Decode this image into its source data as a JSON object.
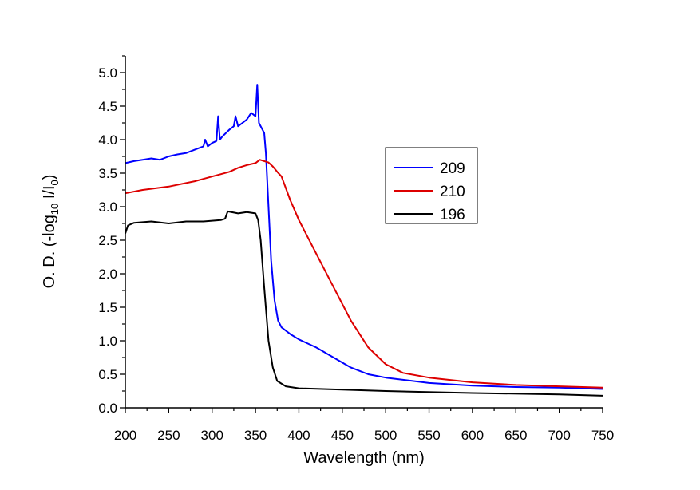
{
  "chart_data": {
    "type": "line",
    "title": "",
    "xlabel": "Wavelength (nm)",
    "ylabel": {
      "main": "O. D. (-log",
      "sub1": "10",
      "mid": " I/I",
      "sub2": "0",
      "end": ")"
    },
    "xlim": [
      200,
      750
    ],
    "ylim": [
      0,
      5
    ],
    "xticks": [
      200,
      250,
      300,
      350,
      400,
      450,
      500,
      550,
      600,
      650,
      700,
      750
    ],
    "xtick_labels": [
      "200",
      "250",
      "300",
      "350",
      "400",
      "450",
      "500",
      "550",
      "600",
      "650",
      "700",
      "750"
    ],
    "yticks": [
      0,
      0.5,
      1,
      1.5,
      2,
      2.5,
      3,
      3.5,
      4,
      4.5,
      5
    ],
    "ytick_labels": [
      "0.0",
      "0.5",
      "1.0",
      "1.5",
      "2.0",
      "2.5",
      "3.0",
      "3.5",
      "4.0",
      "4.5",
      "5.0"
    ],
    "grid": false,
    "legend_position": "center-right",
    "series": [
      {
        "name": "209",
        "color": "#0000ff",
        "x": [
          200,
          210,
          220,
          230,
          240,
          250,
          260,
          270,
          280,
          290,
          292,
          295,
          300,
          305,
          307,
          309,
          312,
          320,
          325,
          327,
          330,
          335,
          340,
          345,
          350,
          352,
          354,
          356,
          360,
          362,
          365,
          368,
          372,
          376,
          380,
          390,
          400,
          420,
          440,
          460,
          480,
          500,
          550,
          600,
          650,
          700,
          750
        ],
        "y": [
          3.65,
          3.68,
          3.7,
          3.72,
          3.7,
          3.75,
          3.78,
          3.8,
          3.85,
          3.9,
          4.0,
          3.9,
          3.95,
          3.98,
          4.35,
          4.0,
          4.05,
          4.15,
          4.2,
          4.35,
          4.2,
          4.25,
          4.3,
          4.4,
          4.35,
          4.82,
          4.25,
          4.2,
          4.1,
          3.8,
          3.0,
          2.2,
          1.6,
          1.3,
          1.2,
          1.1,
          1.02,
          0.9,
          0.75,
          0.6,
          0.5,
          0.45,
          0.37,
          0.33,
          0.31,
          0.3,
          0.28
        ]
      },
      {
        "name": "210",
        "color": "#dd0000",
        "x": [
          200,
          220,
          250,
          280,
          300,
          320,
          330,
          340,
          350,
          355,
          360,
          365,
          370,
          375,
          380,
          390,
          400,
          420,
          440,
          460,
          480,
          500,
          520,
          550,
          600,
          650,
          700,
          750
        ],
        "y": [
          3.2,
          3.25,
          3.3,
          3.38,
          3.45,
          3.52,
          3.58,
          3.62,
          3.65,
          3.7,
          3.68,
          3.66,
          3.6,
          3.52,
          3.45,
          3.1,
          2.8,
          2.3,
          1.8,
          1.3,
          0.9,
          0.65,
          0.52,
          0.45,
          0.38,
          0.34,
          0.32,
          0.3
        ]
      },
      {
        "name": "196",
        "color": "#000000",
        "x": [
          200,
          203,
          210,
          230,
          250,
          270,
          290,
          310,
          315,
          318,
          330,
          340,
          350,
          353,
          356,
          360,
          365,
          370,
          375,
          385,
          400,
          450,
          500,
          600,
          700,
          750
        ],
        "y": [
          2.6,
          2.72,
          2.76,
          2.78,
          2.75,
          2.78,
          2.78,
          2.8,
          2.82,
          2.93,
          2.9,
          2.92,
          2.9,
          2.8,
          2.5,
          1.8,
          1.0,
          0.6,
          0.4,
          0.32,
          0.29,
          0.27,
          0.25,
          0.22,
          0.2,
          0.18
        ]
      }
    ]
  }
}
